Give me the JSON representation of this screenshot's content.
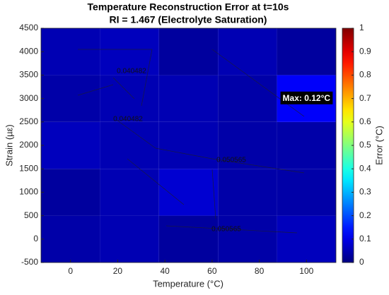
{
  "chart_data": {
    "type": "heatmap",
    "title": "Temperature Reconstruction Error at t=10s",
    "subtitle": "RI = 1.467 (Electrolyte Saturation)",
    "x_label": "Temperature (°C)",
    "y_label": "Strain (µε)",
    "colorbar_label": "Error (°C)",
    "x": [
      0,
      25,
      50,
      75,
      100
    ],
    "y": [
      0,
      1000,
      2000,
      3000,
      4000
    ],
    "z": [
      [
        0.04,
        0.05,
        0.03,
        0.04,
        0.06
      ],
      [
        0.03,
        0.05,
        0.08,
        0.04,
        0.04
      ],
      [
        0.06,
        0.05,
        0.05,
        0.04,
        0.04
      ],
      [
        0.04,
        0.05,
        0.05,
        0.04,
        0.12
      ],
      [
        0.05,
        0.06,
        0.03,
        0.05,
        0.03
      ]
    ],
    "colormap": "jet",
    "xlim": [
      -12.5,
      112.5
    ],
    "ylim": [
      -500,
      4500
    ],
    "xticks": [
      0,
      20,
      40,
      60,
      80,
      100
    ],
    "yticks": [
      -500,
      0,
      500,
      1000,
      1500,
      2000,
      2500,
      3000,
      3500,
      4000,
      4500
    ],
    "clim": [
      0,
      1
    ],
    "cticks": [
      0,
      0.1,
      0.2,
      0.3,
      0.4,
      0.5,
      0.6,
      0.7,
      0.8,
      0.9,
      1
    ],
    "contour_labels": [
      "0.040482",
      "0.050565"
    ],
    "annotation": {
      "text": "Max: 0.12°C",
      "x": 100,
      "y": 3000
    }
  }
}
